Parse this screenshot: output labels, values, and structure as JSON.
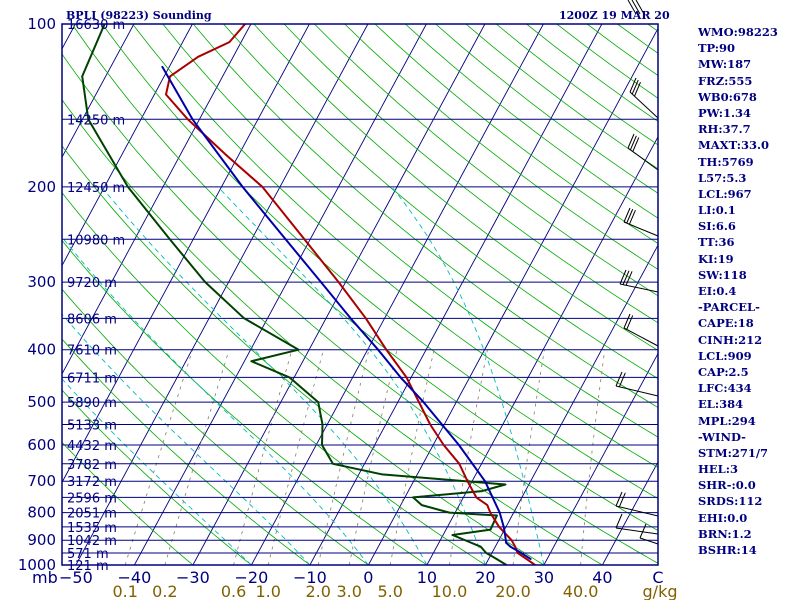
{
  "header": {
    "station": "BPLI (98223) Sounding",
    "time": "1200Z 19 MAR 20"
  },
  "indices": [
    "WMO:98223",
    "TP:90",
    "MW:187",
    "FRZ:555",
    "WB0:678",
    "PW:1.34",
    "RH:37.7",
    "MAXT:33.0",
    "TH:5769",
    "L57:5.3",
    "LCL:967",
    "LI:0.1",
    "SI:6.6",
    "TT:36",
    "KI:19",
    "SW:118",
    "EI:0.4",
    "-PARCEL-",
    "CAPE:18",
    "CINH:212",
    "LCL:909",
    "CAP:2.5",
    "LFC:434",
    "EL:384",
    "MPL:294",
    "-WIND-",
    "STM:271/7",
    "HEL:3",
    "SHR-:0.0",
    "SRDS:112",
    "EHI:0.0",
    "BRN:1.2",
    "BSHR:14"
  ],
  "colors": {
    "frame": "#000080",
    "isobar": "#000080",
    "isotherm": "#000080",
    "dry_adiabat": "#00aa00",
    "moist_adiabat": "#00bbbb",
    "mixing_ratio": "#808060",
    "temperature": "#aa0000",
    "dewpoint": "#004000",
    "parcel": "#0000aa",
    "mixing_label": "#806000"
  },
  "chart_data": {
    "type": "skew-t",
    "y_unit": "mb",
    "x_unit": "°C",
    "secondary_x_unit": "g/kg",
    "pressure_levels": [
      {
        "p": 100,
        "label": "100",
        "height": "16630 m"
      },
      {
        "p": 150,
        "label": "",
        "height": "14250 m"
      },
      {
        "p": 200,
        "label": "200",
        "height": "12450 m"
      },
      {
        "p": 250,
        "label": "",
        "height": "10980 m"
      },
      {
        "p": 300,
        "label": "300",
        "height": "9720 m"
      },
      {
        "p": 350,
        "label": "",
        "height": "8606 m"
      },
      {
        "p": 400,
        "label": "400",
        "height": "7610 m"
      },
      {
        "p": 450,
        "label": "",
        "height": "6711 m"
      },
      {
        "p": 500,
        "label": "500",
        "height": "5890 m"
      },
      {
        "p": 550,
        "label": "",
        "height": "5133 m"
      },
      {
        "p": 600,
        "label": "600",
        "height": "4432 m"
      },
      {
        "p": 650,
        "label": "",
        "height": "3782 m"
      },
      {
        "p": 700,
        "label": "700",
        "height": "3172 m"
      },
      {
        "p": 750,
        "label": "",
        "height": "2596 m"
      },
      {
        "p": 800,
        "label": "800",
        "height": "2051 m"
      },
      {
        "p": 850,
        "label": "",
        "height": "1535 m"
      },
      {
        "p": 900,
        "label": "900",
        "height": "1042 m"
      },
      {
        "p": 950,
        "label": "",
        "height": "571 m"
      },
      {
        "p": 1000,
        "label": "1000",
        "height": "121 m"
      }
    ],
    "temperature_ticks": [
      "−50",
      "−40",
      "−30",
      "−20",
      "−10",
      "0",
      "10",
      "20",
      "30",
      "40"
    ],
    "mixing_ratio_ticks": [
      "0.1",
      "0.2",
      "0.6",
      "1.0",
      "2.0",
      "3.0",
      "5.0",
      "10.0",
      "20.0",
      "40.0"
    ],
    "mixing_ratio_values": [
      0.1,
      0.2,
      0.6,
      1.0,
      2.0,
      3.0,
      5.0,
      10.0,
      20.0,
      40.0
    ],
    "temperature_profile": [
      {
        "p": 1000,
        "t": 28.5
      },
      {
        "p": 975,
        "t": 26.5
      },
      {
        "p": 950,
        "t": 24.4
      },
      {
        "p": 925,
        "t": 23.4
      },
      {
        "p": 900,
        "t": 22.2
      },
      {
        "p": 850,
        "t": 18.8
      },
      {
        "p": 800,
        "t": 16.0
      },
      {
        "p": 775,
        "t": 14.8
      },
      {
        "p": 750,
        "t": 12.2
      },
      {
        "p": 700,
        "t": 9.2
      },
      {
        "p": 650,
        "t": 6.2
      },
      {
        "p": 600,
        "t": 1.8
      },
      {
        "p": 550,
        "t": -2.4
      },
      {
        "p": 500,
        "t": -6.4
      },
      {
        "p": 450,
        "t": -10.8
      },
      {
        "p": 400,
        "t": -16.8
      },
      {
        "p": 350,
        "t": -23.2
      },
      {
        "p": 300,
        "t": -31.2
      },
      {
        "p": 250,
        "t": -41.0
      },
      {
        "p": 200,
        "t": -53.0
      },
      {
        "p": 175,
        "t": -62.0
      },
      {
        "p": 150,
        "t": -72.0
      },
      {
        "p": 135,
        "t": -78.0
      },
      {
        "p": 125,
        "t": -79.0
      },
      {
        "p": 115,
        "t": -76.0
      },
      {
        "p": 108,
        "t": -72.0
      },
      {
        "p": 100,
        "t": -71.0
      }
    ],
    "dewpoint_profile": [
      {
        "p": 1000,
        "t": 23.6
      },
      {
        "p": 975,
        "t": 21.4
      },
      {
        "p": 950,
        "t": 19.0
      },
      {
        "p": 925,
        "t": 17.5
      },
      {
        "p": 880,
        "t": 11.6
      },
      {
        "p": 860,
        "t": 17.6
      },
      {
        "p": 810,
        "t": 17.4
      },
      {
        "p": 800,
        "t": 9.0
      },
      {
        "p": 775,
        "t": 3.6
      },
      {
        "p": 750,
        "t": 1.4
      },
      {
        "p": 730,
        "t": 12.6
      },
      {
        "p": 710,
        "t": 16.0
      },
      {
        "p": 680,
        "t": -6.0
      },
      {
        "p": 650,
        "t": -15.4
      },
      {
        "p": 600,
        "t": -19.0
      },
      {
        "p": 550,
        "t": -20.8
      },
      {
        "p": 500,
        "t": -23.6
      },
      {
        "p": 450,
        "t": -30.8
      },
      {
        "p": 420,
        "t": -38.8
      },
      {
        "p": 400,
        "t": -31.8
      },
      {
        "p": 350,
        "t": -44.0
      },
      {
        "p": 300,
        "t": -54.0
      },
      {
        "p": 250,
        "t": -64.0
      },
      {
        "p": 200,
        "t": -76.0
      },
      {
        "p": 150,
        "t": -89.0
      },
      {
        "p": 125,
        "t": -94.0
      },
      {
        "p": 100,
        "t": -95.0
      }
    ],
    "parcel_profile": [
      {
        "p": 975,
        "t": 27.2
      },
      {
        "p": 950,
        "t": 25.0
      },
      {
        "p": 925,
        "t": 22.6
      },
      {
        "p": 910,
        "t": 21.5
      },
      {
        "p": 880,
        "t": 20.6
      },
      {
        "p": 850,
        "t": 19.6
      },
      {
        "p": 800,
        "t": 17.6
      },
      {
        "p": 700,
        "t": 12.2
      },
      {
        "p": 600,
        "t": 4.4
      },
      {
        "p": 500,
        "t": -5.6
      },
      {
        "p": 450,
        "t": -11.8
      },
      {
        "p": 400,
        "t": -18.2
      },
      {
        "p": 350,
        "t": -25.8
      },
      {
        "p": 300,
        "t": -34.2
      },
      {
        "p": 250,
        "t": -44.2
      },
      {
        "p": 200,
        "t": -56.4
      },
      {
        "p": 150,
        "t": -71.2
      },
      {
        "p": 120,
        "t": -81.2
      }
    ]
  }
}
